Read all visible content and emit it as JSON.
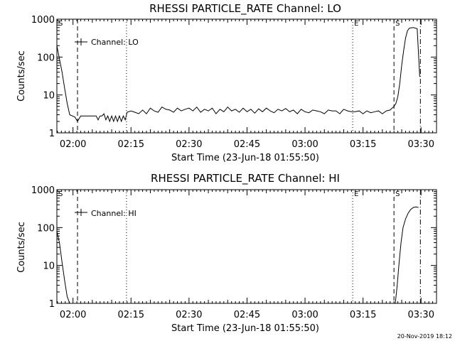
{
  "footer": {
    "timestamp": "20-Nov-2019 18:12"
  },
  "chart_data": [
    {
      "type": "line",
      "title": "RHESSI PARTICLE_RATE Channel: LO",
      "xlabel": "Start Time (23-Jun-18 01:55:50)",
      "ylabel": "Counts/sec",
      "yscale": "log",
      "ylim": [
        1,
        1000
      ],
      "xlim": [
        "01:55:50",
        "03:34:00"
      ],
      "x_ticks": [
        "02:00",
        "02:15",
        "02:30",
        "02:45",
        "03:00",
        "03:15",
        "03:30"
      ],
      "y_ticks": [
        "1",
        "10",
        "100",
        "1000"
      ],
      "legend": {
        "label": "Channel: LO",
        "placement": "top-left"
      },
      "markers": [
        {
          "label": "S",
          "time": "01:55:50",
          "style": "dashdot"
        },
        {
          "label": "",
          "time": "02:01:10",
          "style": "dashed"
        },
        {
          "label": "",
          "time": "02:13:50",
          "style": "dotted"
        },
        {
          "label": "E",
          "time": "03:12:20",
          "style": "dotted"
        },
        {
          "label": "S",
          "time": "03:23:00",
          "style": "dashed"
        },
        {
          "label": "",
          "time": "03:29:50",
          "style": "dashdot"
        }
      ],
      "series": [
        {
          "x": [
            "01:55:50",
            "01:56:30",
            "01:57:10",
            "01:57:50",
            "01:58:30",
            "01:59:10",
            "01:59:50",
            "02:00:30",
            "02:01:10",
            "02:02:00",
            "02:03:00",
            "02:04:00",
            "02:05:00",
            "02:06:00",
            "02:06:30",
            "02:07:00",
            "02:07:30",
            "02:08:00",
            "02:08:30",
            "02:09:00",
            "02:09:30",
            "02:10:00",
            "02:10:30",
            "02:11:00",
            "02:11:30",
            "02:12:00",
            "02:12:30",
            "02:13:00",
            "02:13:30",
            "02:14:00",
            "02:15:00",
            "02:16:00",
            "02:17:00",
            "02:18:00",
            "02:19:00",
            "02:20:00",
            "02:21:00",
            "02:22:00",
            "02:23:00",
            "02:24:00",
            "02:25:00",
            "02:26:00",
            "02:27:00",
            "02:28:00",
            "02:29:00",
            "02:30:00",
            "02:31:00",
            "02:32:00",
            "02:33:00",
            "02:34:00",
            "02:35:00",
            "02:36:00",
            "02:37:00",
            "02:38:00",
            "02:39:00",
            "02:40:00",
            "02:41:00",
            "02:42:00",
            "02:43:00",
            "02:44:00",
            "02:45:00",
            "02:46:00",
            "02:47:00",
            "02:48:00",
            "02:49:00",
            "02:50:00",
            "02:51:00",
            "02:52:00",
            "02:53:00",
            "02:54:00",
            "02:55:00",
            "02:56:00",
            "02:57:00",
            "02:58:00",
            "02:59:00",
            "03:00:00",
            "03:01:00",
            "03:02:00",
            "03:03:00",
            "03:04:00",
            "03:05:00",
            "03:06:00",
            "03:07:00",
            "03:08:00",
            "03:09:00",
            "03:10:00",
            "03:11:00",
            "03:12:00",
            "03:13:00",
            "03:14:00",
            "03:15:00",
            "03:16:00",
            "03:17:00",
            "03:18:00",
            "03:19:00",
            "03:20:00",
            "03:21:00",
            "03:22:00",
            "03:23:00",
            "03:23:30",
            "03:24:00",
            "03:24:30",
            "03:25:00",
            "03:25:30",
            "03:26:00",
            "03:26:30",
            "03:27:00",
            "03:28:00",
            "03:29:00",
            "03:29:40"
          ],
          "y": [
            200,
            90,
            40,
            15,
            6,
            3,
            2.8,
            2.6,
            2,
            2.8,
            2.8,
            2.8,
            2.8,
            2.8,
            2.2,
            2.8,
            2.8,
            3.2,
            2.2,
            2.8,
            2,
            2.8,
            2,
            2.8,
            2,
            2.8,
            2,
            2.8,
            2.2,
            3.5,
            3.8,
            3.5,
            3.2,
            4,
            3.2,
            4.5,
            3.8,
            3.5,
            4.8,
            4.2,
            4,
            3.5,
            4.5,
            3.8,
            4.2,
            4.5,
            3.8,
            4.8,
            3.5,
            4.2,
            3.8,
            4.5,
            3.2,
            4.2,
            3.6,
            4.8,
            3.8,
            4.2,
            3.5,
            4.5,
            3.6,
            4.2,
            3.3,
            4.3,
            3.6,
            4.5,
            3.8,
            3.4,
            4.2,
            3.8,
            4.4,
            3.6,
            4,
            3.2,
            4.2,
            3.6,
            3.4,
            4,
            3.8,
            3.6,
            3.2,
            4,
            3.8,
            3.8,
            3.2,
            4.2,
            3.8,
            3.6,
            3.6,
            3.8,
            3.2,
            3.8,
            3.4,
            3.6,
            3.8,
            3.2,
            3.8,
            4,
            5,
            6,
            9,
            20,
            60,
            150,
            320,
            500,
            580,
            600,
            560,
            30
          ]
        }
      ]
    },
    {
      "type": "line",
      "title": "RHESSI PARTICLE_RATE Channel: HI",
      "xlabel": "Start Time (23-Jun-18 01:55:50)",
      "ylabel": "Counts/sec",
      "yscale": "log",
      "ylim": [
        1,
        1000
      ],
      "xlim": [
        "01:55:50",
        "03:34:00"
      ],
      "x_ticks": [
        "02:00",
        "02:15",
        "02:30",
        "02:45",
        "03:00",
        "03:15",
        "03:30"
      ],
      "y_ticks": [
        "1",
        "10",
        "100",
        "1000"
      ],
      "legend": {
        "label": "Channel: HI",
        "placement": "top-left"
      },
      "markers": [
        {
          "label": "S",
          "time": "01:55:50",
          "style": "dashdot"
        },
        {
          "label": "",
          "time": "02:01:10",
          "style": "dashed"
        },
        {
          "label": "",
          "time": "02:13:50",
          "style": "dotted"
        },
        {
          "label": "E",
          "time": "03:12:20",
          "style": "dotted"
        },
        {
          "label": "S",
          "time": "03:23:00",
          "style": "dashed"
        },
        {
          "label": "",
          "time": "03:29:50",
          "style": "dashdot"
        }
      ],
      "series": [
        {
          "x": [
            "01:55:50",
            "01:56:30",
            "01:57:10",
            "01:57:50",
            "01:58:30",
            "01:59:10",
            "03:23:20",
            "03:23:50",
            "03:24:20",
            "03:24:50",
            "03:25:20",
            "03:26:00",
            "03:26:40",
            "03:27:20",
            "03:28:00",
            "03:28:40",
            "03:29:20"
          ],
          "y": [
            80,
            40,
            12,
            4,
            1.5,
            1,
            1,
            3,
            12,
            40,
            100,
            170,
            240,
            300,
            340,
            350,
            340
          ]
        }
      ]
    }
  ]
}
